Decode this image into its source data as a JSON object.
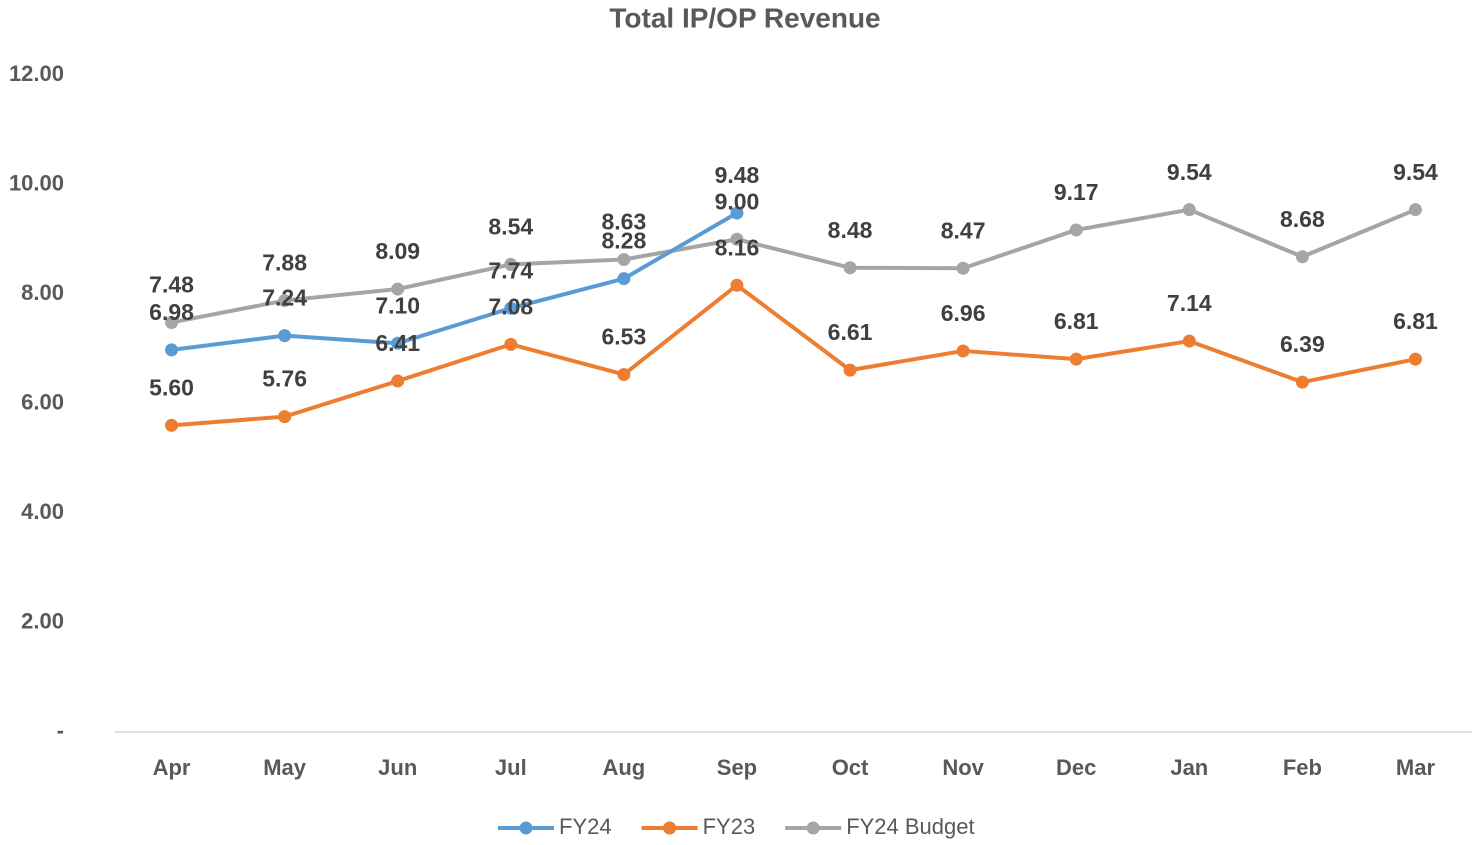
{
  "chart_data": {
    "type": "line",
    "title": "Total IP/OP Revenue",
    "categories": [
      "Apr",
      "May",
      "Jun",
      "Jul",
      "Aug",
      "Sep",
      "Oct",
      "Nov",
      "Dec",
      "Jan",
      "Feb",
      "Mar"
    ],
    "series": [
      {
        "name": "FY24",
        "color": "#5b9bd5",
        "values": [
          6.98,
          7.24,
          7.1,
          7.74,
          8.28,
          9.48,
          null,
          null,
          null,
          null,
          null,
          null
        ],
        "value_labels": [
          "6.98",
          "7.24",
          "7.10",
          "7.74",
          "8.28",
          "9.48",
          null,
          null,
          null,
          null,
          null,
          null
        ]
      },
      {
        "name": "FY23",
        "color": "#ed7d31",
        "values": [
          5.6,
          5.76,
          6.41,
          7.08,
          6.53,
          8.16,
          6.61,
          6.96,
          6.81,
          7.14,
          6.39,
          6.81
        ],
        "value_labels": [
          "5.60",
          "5.76",
          "6.41",
          "7.08",
          "6.53",
          "8.16",
          "6.61",
          "6.96",
          "6.81",
          "7.14",
          "6.39",
          "6.81"
        ]
      },
      {
        "name": "FY24 Budget",
        "color": "#a5a5a5",
        "values": [
          7.48,
          7.88,
          8.09,
          8.54,
          8.63,
          9.0,
          8.48,
          8.47,
          9.17,
          9.54,
          8.68,
          9.54
        ],
        "value_labels": [
          "7.48",
          "7.88",
          "8.09",
          "8.54",
          "8.63",
          "9.00",
          "8.48",
          "8.47",
          "9.17",
          "9.54",
          "8.68",
          "9.54"
        ]
      }
    ],
    "ylim": [
      0,
      12
    ],
    "yticks": [
      {
        "value": 0,
        "label": "-"
      },
      {
        "value": 2,
        "label": "2.00"
      },
      {
        "value": 4,
        "label": "4.00"
      },
      {
        "value": 6,
        "label": "6.00"
      },
      {
        "value": 8,
        "label": "8.00"
      },
      {
        "value": 10,
        "label": "10.00"
      },
      {
        "value": 12,
        "label": "12.00"
      }
    ],
    "grid": false,
    "legend": "bottom"
  }
}
